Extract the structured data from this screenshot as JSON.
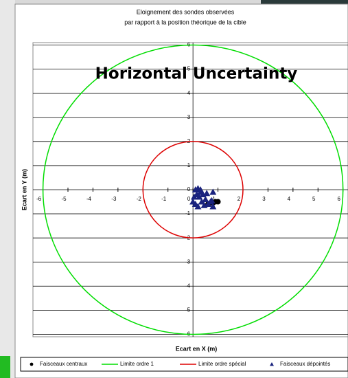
{
  "chart_data": {
    "type": "scatter",
    "title": [
      "Eloignement des sondes observées",
      "par rapport à la position théorique de la cible"
    ],
    "overlay": "Horizontal Uncertainty",
    "xlabel": "Ecart en X (m)",
    "ylabel": "Ecart en Y (m)",
    "xlim": [
      -6.4,
      6.2
    ],
    "ylim": [
      -6.1,
      6.1
    ],
    "xticks": [
      -6,
      -5,
      -4,
      -3,
      -2,
      -1,
      0,
      1,
      2,
      3,
      4,
      5,
      6
    ],
    "yticks": [
      -6,
      -5,
      -4,
      -3,
      -2,
      -1,
      0,
      1,
      2,
      3,
      4,
      5,
      6
    ],
    "grid": "horizontal",
    "series": [
      {
        "name": "Faisceaux centraux",
        "color": "#000000",
        "marker": "circle",
        "x": [
          0.6,
          0.7,
          0.8,
          0.9,
          1.0
        ],
        "y": [
          -0.6,
          -0.55,
          -0.55,
          -0.5,
          -0.5
        ]
      },
      {
        "name": "Limite ordre 1",
        "color": "#00dd00",
        "radius": 6
      },
      {
        "name": "Limite ordre spécial",
        "color": "#dd0000",
        "radius": 2
      },
      {
        "name": "Faisceaux dépointés",
        "color": "#1a237e",
        "marker": "triangle",
        "x": [
          0.1,
          0.2,
          0.3,
          0.15,
          0.25,
          0.4,
          0.35,
          0.1,
          0.0,
          0.5,
          0.6,
          0.7,
          0.8,
          0.8,
          0.45,
          0.2,
          0.05,
          0.3,
          0.55,
          0.75
        ],
        "y": [
          0.0,
          0.05,
          -0.1,
          -0.2,
          -0.3,
          -0.2,
          -0.5,
          -0.6,
          -0.5,
          -0.4,
          -0.6,
          -0.5,
          -0.7,
          -0.1,
          -0.65,
          -0.7,
          -0.3,
          0.0,
          -0.15,
          -0.45
        ]
      }
    ]
  }
}
